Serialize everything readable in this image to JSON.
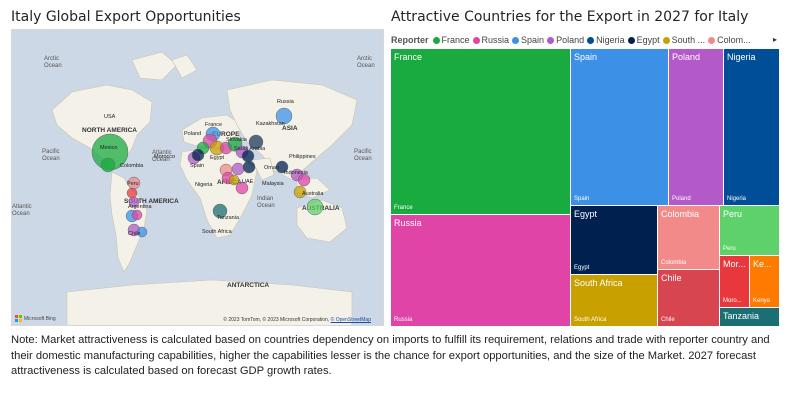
{
  "left_title": "Italy Global Export Opportunities",
  "right_title": "Attractive Countries for the Export in 2027 for Italy",
  "map": {
    "labels": {
      "continents": [
        "NORTH AMERICA",
        "SOUTH AMERICA",
        "EUROPE",
        "AFRICA",
        "ASIA",
        "AUSTRALIA",
        "ANTARCTICA"
      ],
      "oceans": [
        "Arctic Ocean",
        "Arctic Ocean",
        "Pacific Ocean",
        "Atlantic Ocean",
        "Indian Ocean",
        "Pacific Ocean",
        "Atlantic Ocean"
      ],
      "countries": [
        "USA",
        "Mexico",
        "Colombia",
        "Peru",
        "Argentina",
        "Chile",
        "France",
        "Poland",
        "Slovakia",
        "Morocco",
        "Spain",
        "Egypt",
        "Saudi Arabia",
        "Nigeria",
        "UAE",
        "Oman",
        "Tanzania",
        "South Africa",
        "Russia",
        "Kazakhstan",
        "Philippines",
        "Malaysia",
        "Indonesia",
        "Australia"
      ]
    },
    "footer": "© 2023 TomTom, © 2023 Microsoft Corporation,",
    "footer_link": "© OpenStreetMap",
    "brand": "Microsoft Bing"
  },
  "legend": {
    "title": "Reporter",
    "items": [
      {
        "name": "France",
        "color": "#1aab40"
      },
      {
        "name": "Russia",
        "color": "#e044a7"
      },
      {
        "name": "Spain",
        "color": "#3c91e6"
      },
      {
        "name": "Poland",
        "color": "#b45ac8"
      },
      {
        "name": "Nigeria",
        "color": "#004e98"
      },
      {
        "name": "Egypt",
        "color": "#002050"
      },
      {
        "name": "South ...",
        "color": "#c8a000"
      },
      {
        "name": "Colom...",
        "color": "#f28a8a"
      }
    ]
  },
  "treemap": [
    {
      "name": "France",
      "top": "France",
      "bottom": "France",
      "color": "#1aab40"
    },
    {
      "name": "Spain",
      "top": "Spain",
      "bottom": "Spain",
      "color": "#3c91e6"
    },
    {
      "name": "Poland",
      "top": "Poland",
      "bottom": "Poland",
      "color": "#b45ac8"
    },
    {
      "name": "Nigeria",
      "top": "Nigeria",
      "bottom": "Nigeria",
      "color": "#004e98"
    },
    {
      "name": "Russia",
      "top": "Russia",
      "bottom": "Russia",
      "color": "#e044a7"
    },
    {
      "name": "Egypt",
      "top": "Egypt",
      "bottom": "Egypt",
      "color": "#002050"
    },
    {
      "name": "South Africa",
      "top": "South Africa",
      "bottom": "South Africa",
      "color": "#c8a000"
    },
    {
      "name": "Colombia",
      "top": "Colombia",
      "bottom": "Colombia",
      "color": "#f28a8a"
    },
    {
      "name": "Chile",
      "top": "Chile",
      "bottom": "Chile",
      "color": "#d64550"
    },
    {
      "name": "Peru",
      "top": "Peru",
      "bottom": "Peru",
      "color": "#5fd16a"
    },
    {
      "name": "Morocco",
      "top": "Mor...",
      "bottom": "Moro...",
      "color": "#e8383d"
    },
    {
      "name": "Kenya",
      "top": "Ke...",
      "bottom": "Kenya",
      "color": "#ff7a00"
    },
    {
      "name": "Tanzania",
      "top": "Tanzania",
      "bottom": "",
      "color": "#1b6e73"
    }
  ],
  "note": "Note: Market attractiveness is calculated based on countries dependency on imports to fulfill its requirement, relations and trade with reporter country and their domestic manufacturing capabilities, higher the capabilities lesser is the chance for export opportunities, and the size of the Market. 2027 forecast attractiveness is calculated based on forecast GDP growth rates."
}
